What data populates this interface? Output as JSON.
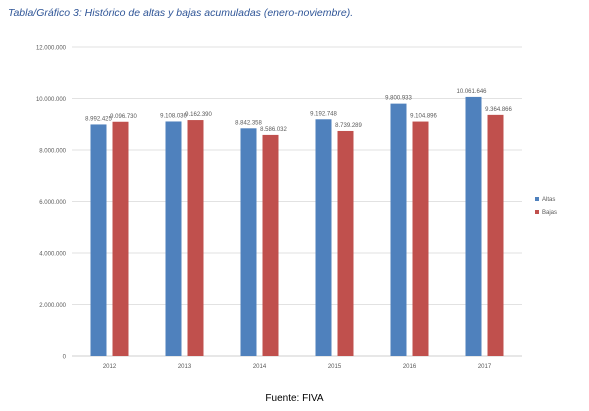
{
  "caption": "Tabla/Gráfico 3: Histórico de altas y bajas acumuladas (enero-noviembre).",
  "source": "Fuente: FIVA",
  "colors": {
    "altas": "#4f81bd",
    "bajas": "#c0504d",
    "grid": "#d9d9d9",
    "axis": "#bfbfbf"
  },
  "chart_data": {
    "type": "bar",
    "categories": [
      "2012",
      "2013",
      "2014",
      "2015",
      "2016",
      "2017"
    ],
    "series": [
      {
        "name": "Altas",
        "values": [
          8992425,
          9108036,
          8842358,
          9192748,
          9800933,
          10061646
        ]
      },
      {
        "name": "Bajas",
        "values": [
          9096730,
          9162390,
          8586032,
          8739289,
          9104896,
          9364866
        ]
      }
    ],
    "data_labels": {
      "Altas": [
        "8.992.425",
        "9.108.036",
        "8.842.358",
        "9.192.748",
        "9.800.933",
        "10.061.646"
      ],
      "Bajas": [
        "9.096.730",
        "9.162.390",
        "8.586.032",
        "8.739.289",
        "9.104.896",
        "9.364.866"
      ]
    },
    "ylim": [
      0,
      12000000
    ],
    "yticks": [
      0,
      2000000,
      4000000,
      6000000,
      8000000,
      10000000,
      12000000
    ],
    "ytick_labels": [
      "0",
      "2.000.000",
      "4.000.000",
      "6.000.000",
      "8.000.000",
      "10.000.000",
      "12.000.000"
    ],
    "grid": true,
    "legend_position": "right"
  }
}
